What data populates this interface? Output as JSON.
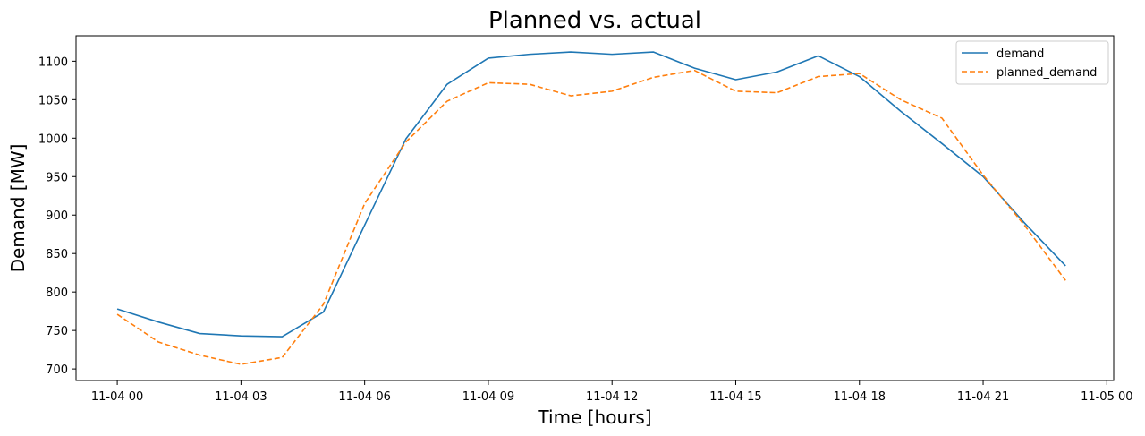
{
  "chart_data": {
    "type": "line",
    "title": "Planned vs. actual",
    "xlabel": "Time [hours]",
    "ylabel": "Demand [MW]",
    "x_unit": "hour",
    "x": [
      "11-04 00:00",
      "11-04 01:00",
      "11-04 02:00",
      "11-04 03:00",
      "11-04 04:00",
      "11-04 05:00",
      "11-04 06:00",
      "11-04 07:00",
      "11-04 08:00",
      "11-04 09:00",
      "11-04 10:00",
      "11-04 11:00",
      "11-04 12:00",
      "11-04 13:00",
      "11-04 14:00",
      "11-04 15:00",
      "11-04 16:00",
      "11-04 17:00",
      "11-04 18:00",
      "11-04 19:00",
      "11-04 20:00",
      "11-04 21:00",
      "11-04 22:00",
      "11-04 23:00"
    ],
    "xticks": [
      "11-04 00",
      "11-04 03",
      "11-04 06",
      "11-04 09",
      "11-04 12",
      "11-04 15",
      "11-04 18",
      "11-04 21",
      "11-05 00"
    ],
    "xlim": [
      "11-03 23:00",
      "11-05 00:10"
    ],
    "yticks": [
      700,
      750,
      800,
      850,
      900,
      950,
      1000,
      1050,
      1100
    ],
    "ylim": [
      685,
      1133
    ],
    "grid": false,
    "legend_position": "top-right",
    "series": [
      {
        "name": "demand",
        "color": "#1f77b4",
        "style": "solid",
        "values": [
          778,
          761,
          746,
          743,
          742,
          774,
          887,
          999,
          1070,
          1104,
          1109,
          1112,
          1109,
          1112,
          1091,
          1076,
          1086,
          1107,
          1080,
          1035,
          993,
          950,
          890,
          834
        ]
      },
      {
        "name": "planned_demand",
        "color": "#ff7f0e",
        "style": "dashed",
        "values": [
          771,
          735,
          718,
          706,
          715,
          784,
          915,
          995,
          1048,
          1072,
          1070,
          1055,
          1061,
          1079,
          1088,
          1061,
          1059,
          1080,
          1084,
          1050,
          1026,
          952,
          887,
          815
        ]
      }
    ]
  }
}
